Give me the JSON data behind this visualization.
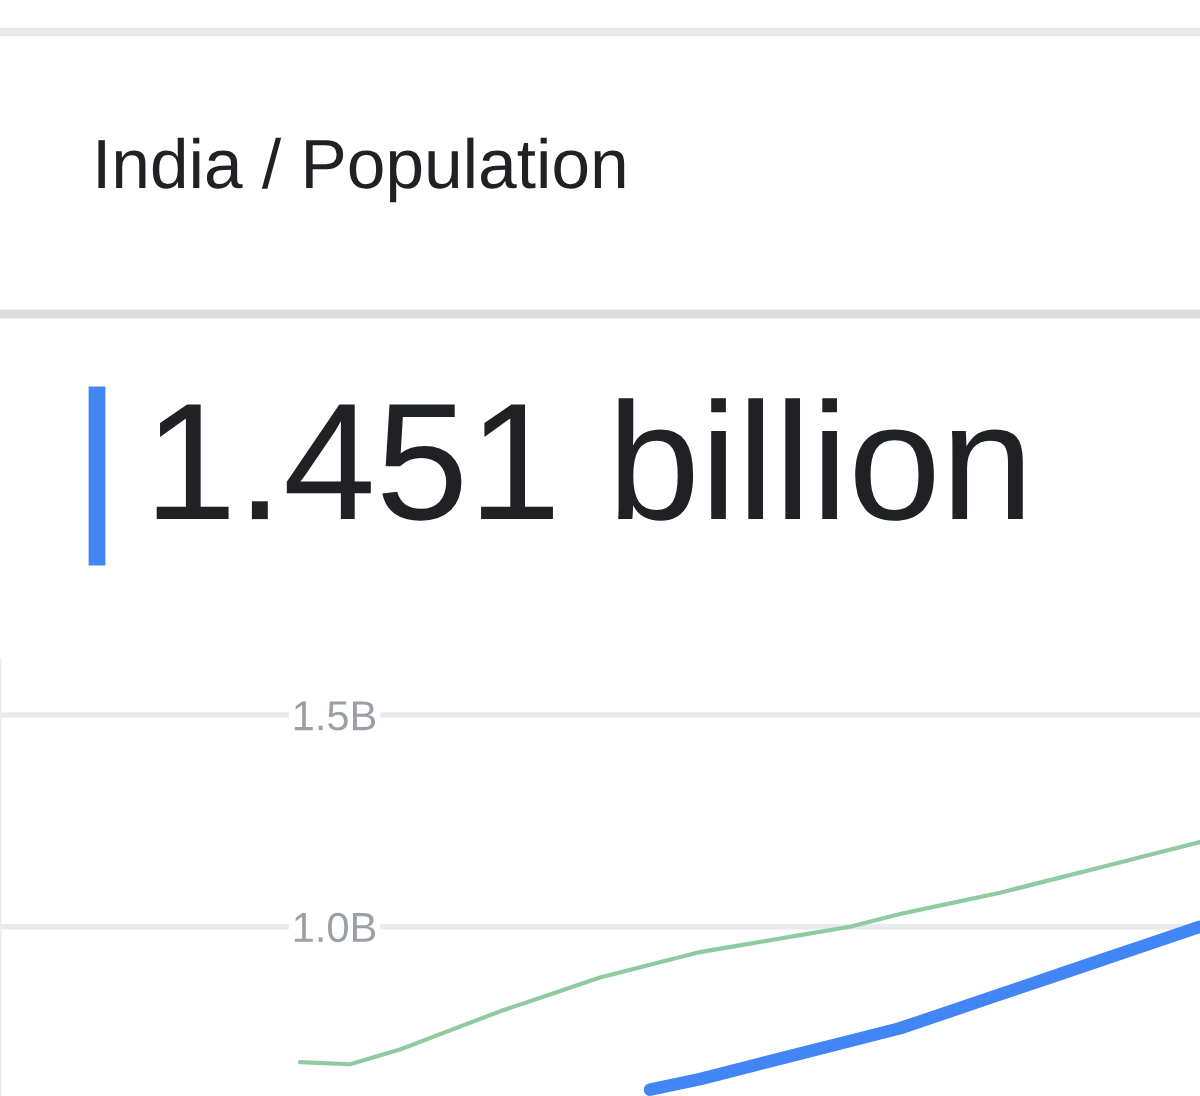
{
  "chart_data": {
    "type": "line",
    "title": "India / Population",
    "subtitle": "1.451 billion",
    "categories": [
      null,
      null,
      null,
      null,
      null,
      null,
      null,
      null,
      null,
      null,
      null,
      null,
      null,
      null,
      null,
      null,
      null,
      null,
      null,
      null,
      null,
      null,
      null,
      null,
      null
    ],
    "series": [
      {
        "color": "#8fcaa0",
        "values": [
          null,
          null,
          null,
          null,
          null,
          null,
          0.68,
          0.675,
          0.71,
          0.755,
          0.8,
          0.84,
          0.88,
          0.91,
          0.94,
          0.96,
          0.98,
          1.0,
          1.03,
          1.055,
          1.08,
          1.11,
          1.14,
          1.17,
          1.2
        ]
      },
      {
        "color": "#4285f4",
        "values": [
          null,
          null,
          null,
          null,
          null,
          null,
          null,
          null,
          null,
          null,
          null,
          null,
          null,
          0.615,
          0.64,
          0.67,
          0.7,
          0.73,
          0.76,
          0.8,
          0.84,
          0.88,
          0.92,
          0.96,
          1.0
        ]
      }
    ],
    "ylim": [
      0.6,
      1.63
    ],
    "yticks": [
      {
        "value": 1.0,
        "label": "1.0B"
      },
      {
        "value": 1.5,
        "label": "1.5B"
      }
    ],
    "grid": "y",
    "tick_labels": "y"
  }
}
